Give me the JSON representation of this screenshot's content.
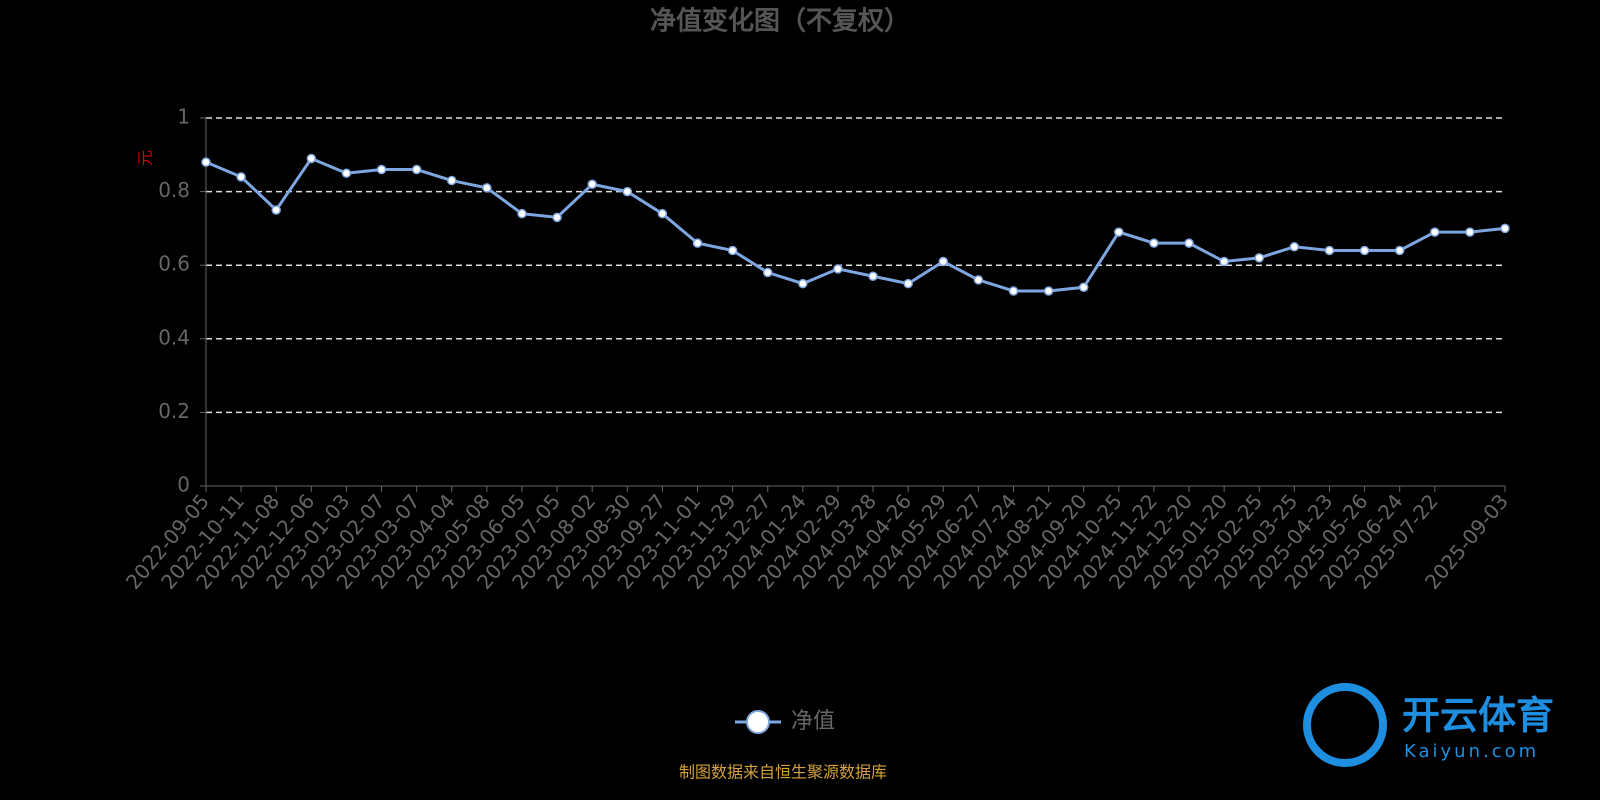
{
  "chart_data": {
    "type": "line",
    "title": "净值变化图（不复权）",
    "y_label": "元",
    "categories": [
      "2022-09-05",
      "2022-10-11",
      "2022-11-08",
      "2022-12-06",
      "2023-01-03",
      "2023-02-07",
      "2023-03-07",
      "2023-04-04",
      "2023-05-08",
      "2023-06-05",
      "2023-07-05",
      "2023-08-02",
      "2023-08-30",
      "2023-09-27",
      "2023-11-01",
      "2023-11-29",
      "2023-12-27",
      "2024-01-24",
      "2024-02-29",
      "2024-03-28",
      "2024-04-26",
      "2024-05-29",
      "2024-06-27",
      "2024-07-24",
      "2024-08-21",
      "2024-09-20",
      "2024-10-25",
      "2024-11-22",
      "2024-12-20",
      "2025-01-20",
      "2025-02-25",
      "2025-03-25",
      "2025-04-23",
      "2025-05-26",
      "2025-06-24",
      "2025-07-22",
      null,
      "2025-09-03"
    ],
    "series": [
      {
        "name": "净值",
        "color": "#7ea6e0",
        "values": [
          0.88,
          0.84,
          0.75,
          0.89,
          0.85,
          0.86,
          0.86,
          0.83,
          0.81,
          0.74,
          0.73,
          0.82,
          0.8,
          0.74,
          0.66,
          0.64,
          0.58,
          0.55,
          0.59,
          0.57,
          0.55,
          0.61,
          0.56,
          0.53,
          0.53,
          0.54,
          0.69,
          0.66,
          0.66,
          0.61,
          0.62,
          0.65,
          0.64,
          0.64,
          0.64,
          0.69,
          0.69,
          0.7
        ]
      }
    ],
    "ylim": [
      0,
      1
    ],
    "yticks": [
      0,
      0.2,
      0.4,
      0.6,
      0.8,
      1
    ],
    "grid": true,
    "legend": "bottom",
    "source": "制图数据来自恒生聚源数据库"
  },
  "watermark": {
    "title": "开云体育",
    "subtitle": "Kaiyun.com"
  }
}
